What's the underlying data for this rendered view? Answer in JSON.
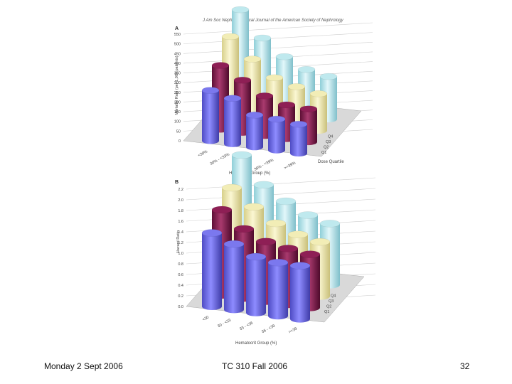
{
  "header": "J Am Soc Nephrol / Clinical Journal of the American Society of Nephrology",
  "footer": {
    "date": "Monday 2 Sept 2006",
    "course": "TC 310 Fall 2006",
    "page": "32"
  },
  "colors": {
    "Q1": "#7b78ee",
    "Q2": "#8e1f55",
    "Q3": "#f2edb6",
    "Q4": "#bfe9ee"
  },
  "chart_data": [
    {
      "type": "bar",
      "panel_label": "A",
      "ylabel": "Mortality Rate (per 1,000 patients)",
      "xlabel": "Hematocrit Group (%)",
      "zlabel": "Dose Quartile",
      "categories": [
        "<30%",
        "30% - <33%",
        "33% - <36%",
        "36% - <39%",
        ">=39%"
      ],
      "y_ticks": [
        "0",
        "50",
        "100",
        "150",
        "200",
        "250",
        "300",
        "350",
        "400",
        "450",
        "500",
        "550"
      ],
      "ylim": [
        0,
        550
      ],
      "series": [
        {
          "name": "Q1",
          "values": [
            260,
            235,
            165,
            160,
            150
          ]
        },
        {
          "name": "Q2",
          "values": [
            330,
            270,
            205,
            175,
            170
          ]
        },
        {
          "name": "Q3",
          "values": [
            420,
            320,
            240,
            210,
            190
          ]
        },
        {
          "name": "Q4",
          "values": [
            500,
            370,
            290,
            240,
            220
          ]
        }
      ]
    },
    {
      "type": "bar",
      "panel_label": "B",
      "ylabel": "Hazard Ratio",
      "xlabel": "Hematocrit Group (%)",
      "zlabel": "",
      "categories": [
        "<30",
        "30 - <33",
        "33 - <36",
        "36 - <39",
        ">=39"
      ],
      "y_ticks": [
        "0.0",
        "0.2",
        "0.4",
        "0.6",
        "0.8",
        "1.0",
        "1.2",
        "1.4",
        "1.6",
        "1.8",
        "2.0",
        "2.2"
      ],
      "ylim": [
        0,
        2.2
      ],
      "series": [
        {
          "name": "Q1",
          "values": [
            1.38,
            1.23,
            1.05,
            1.0,
            1.0
          ]
        },
        {
          "name": "Q2",
          "values": [
            1.6,
            1.3,
            1.12,
            1.05,
            1.0
          ]
        },
        {
          "name": "Q3",
          "values": [
            1.8,
            1.5,
            1.25,
            1.1,
            1.02
          ]
        },
        {
          "name": "Q4",
          "values": [
            2.2,
            1.7,
            1.45,
            1.25,
            1.15
          ]
        }
      ]
    }
  ]
}
